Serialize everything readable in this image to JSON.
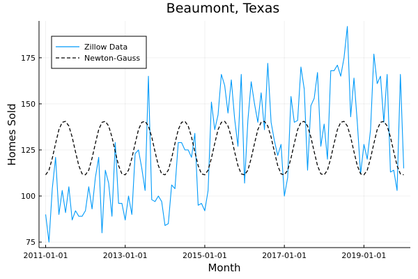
{
  "chart_data": {
    "type": "line",
    "title": "Beaumont, Texas",
    "xlabel": "Month",
    "ylabel": "Homes Sold",
    "x_start": "2011-01-01",
    "x_step": "1 month",
    "xlim": [
      "2010-11-01",
      "2020-03-01"
    ],
    "ylim": [
      72,
      195
    ],
    "xticks": [
      "2011-01-01",
      "2013-01-01",
      "2015-01-01",
      "2017-01-01",
      "2019-01-01"
    ],
    "yticks": [
      75,
      100,
      125,
      150,
      175
    ],
    "grid": true,
    "legend_position": "top-left",
    "series": [
      {
        "name": "Zillow Data",
        "color": "#009af9",
        "style": "solid",
        "values": [
          90,
          75,
          104,
          121,
          90,
          103,
          91,
          105,
          87,
          92,
          89,
          89,
          92,
          105,
          93,
          110,
          121,
          80,
          114,
          107,
          89,
          129,
          96,
          96,
          87,
          100,
          90,
          123,
          125,
          115,
          103,
          165,
          98,
          97,
          100,
          97,
          84,
          85,
          106,
          104,
          129,
          129,
          125,
          125,
          121,
          134,
          95,
          96,
          92,
          103,
          151,
          136,
          144,
          166,
          160,
          145,
          163,
          142,
          127,
          166,
          107,
          141,
          162,
          150,
          140,
          156,
          136,
          172,
          140,
          130,
          122,
          128,
          100,
          110,
          154,
          140,
          141,
          170,
          158,
          114,
          149,
          153,
          167,
          127,
          139,
          120,
          168,
          168,
          171,
          165,
          175,
          192,
          143,
          164,
          140,
          112,
          128,
          120,
          136,
          177,
          161,
          165,
          140,
          166,
          113,
          114,
          103,
          166,
          115
        ]
      },
      {
        "name": "Newton-Gauss",
        "color": "#000000",
        "style": "dashed",
        "period_months": 12,
        "min": 111.5,
        "max": 140.5,
        "values": [
          111.5,
          114,
          120.5,
          128.5,
          136,
          140,
          140.5,
          138,
          132,
          124,
          116.5,
          112,
          111.5,
          114,
          120.5,
          128.5,
          136,
          140,
          140.5,
          138,
          132,
          124,
          116.5,
          112,
          111.5,
          114,
          120.5,
          128.5,
          136,
          140,
          140.5,
          138,
          132,
          124,
          116.5,
          112,
          111.5,
          114,
          120.5,
          128.5,
          136,
          140,
          140.5,
          138,
          132,
          124,
          116.5,
          112,
          111.5,
          114,
          120.5,
          128.5,
          136,
          140,
          140.5,
          138,
          132,
          124,
          116.5,
          112,
          111.5,
          114,
          120.5,
          128.5,
          136,
          140,
          140.5,
          138,
          132,
          124,
          116.5,
          112,
          111.5,
          114,
          120.5,
          128.5,
          136,
          140,
          140.5,
          138,
          132,
          124,
          116.5,
          112,
          111.5,
          114,
          120.5,
          128.5,
          136,
          140,
          140.5,
          138,
          132,
          124,
          116.5,
          112,
          111.5,
          114,
          120.5,
          128.5,
          136,
          140,
          140.5,
          138,
          132,
          124,
          116.5,
          112,
          111.5
        ]
      }
    ]
  }
}
